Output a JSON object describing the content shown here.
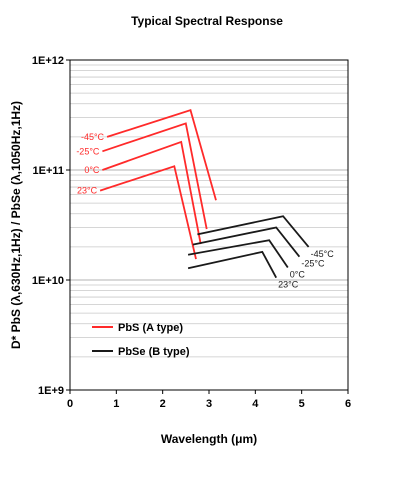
{
  "chart_data": {
    "type": "line",
    "title": "Typical Spectral Response",
    "xlabel": "Wavelength (μm)",
    "ylabel": "D* PbS (λ,630Hz,1Hz) / PbSe (λ,1050Hz,1Hz)",
    "xlim": [
      0,
      6
    ],
    "ylim": [
      1000000000.0,
      1000000000000.0
    ],
    "yscale": "log",
    "x_ticks": [
      "0",
      "1",
      "2",
      "3",
      "4",
      "5",
      "6"
    ],
    "y_ticks": [
      "1E+9",
      "1E+10",
      "1E+11",
      "1E+12"
    ],
    "grid": "horizontal",
    "legend_position": "bottom-left",
    "legend": [
      {
        "label": "PbS (A type)",
        "color": "#ff2a2a"
      },
      {
        "label": "PbSe (B type)",
        "color": "#1a1a1a"
      }
    ],
    "series": [
      {
        "group": "PbS (A type)",
        "name": "-45°C",
        "color": "#ff2a2a",
        "x": [
          0.8,
          2.6,
          3.15
        ],
        "y": [
          200000000000.0,
          350000000000.0,
          53000000000.0
        ]
      },
      {
        "group": "PbS (A type)",
        "name": "-25°C",
        "color": "#ff2a2a",
        "x": [
          0.7,
          2.5,
          2.95
        ],
        "y": [
          148000000000.0,
          265000000000.0,
          29000000000.0
        ]
      },
      {
        "group": "PbS (A type)",
        "name": "0°C",
        "color": "#ff2a2a",
        "x": [
          0.7,
          2.4,
          2.82
        ],
        "y": [
          100000000000.0,
          180000000000.0,
          21200000000.0
        ]
      },
      {
        "group": "PbS (A type)",
        "name": "23°C",
        "color": "#ff2a2a",
        "x": [
          0.65,
          2.25,
          2.72
        ],
        "y": [
          65000000000.0,
          108000000000.0,
          15500000000.0
        ]
      },
      {
        "group": "PbSe (B type)",
        "name": "-45°C",
        "color": "#1a1a1a",
        "x": [
          2.75,
          4.6,
          5.15
        ],
        "y": [
          26000000000.0,
          38000000000.0,
          20000000000.0
        ]
      },
      {
        "group": "PbSe (B type)",
        "name": "-25°C",
        "color": "#1a1a1a",
        "x": [
          2.65,
          4.45,
          4.95
        ],
        "y": [
          21000000000.0,
          30000000000.0,
          16300000000.0
        ]
      },
      {
        "group": "PbSe (B type)",
        "name": "0°C",
        "color": "#1a1a1a",
        "x": [
          2.55,
          4.3,
          4.7
        ],
        "y": [
          17000000000.0,
          23000000000.0,
          13000000000.0
        ]
      },
      {
        "group": "PbSe (B type)",
        "name": "23°C",
        "color": "#1a1a1a",
        "x": [
          2.55,
          4.15,
          4.45
        ],
        "y": [
          12800000000.0,
          18000000000.0,
          10500000000.0
        ]
      }
    ]
  }
}
